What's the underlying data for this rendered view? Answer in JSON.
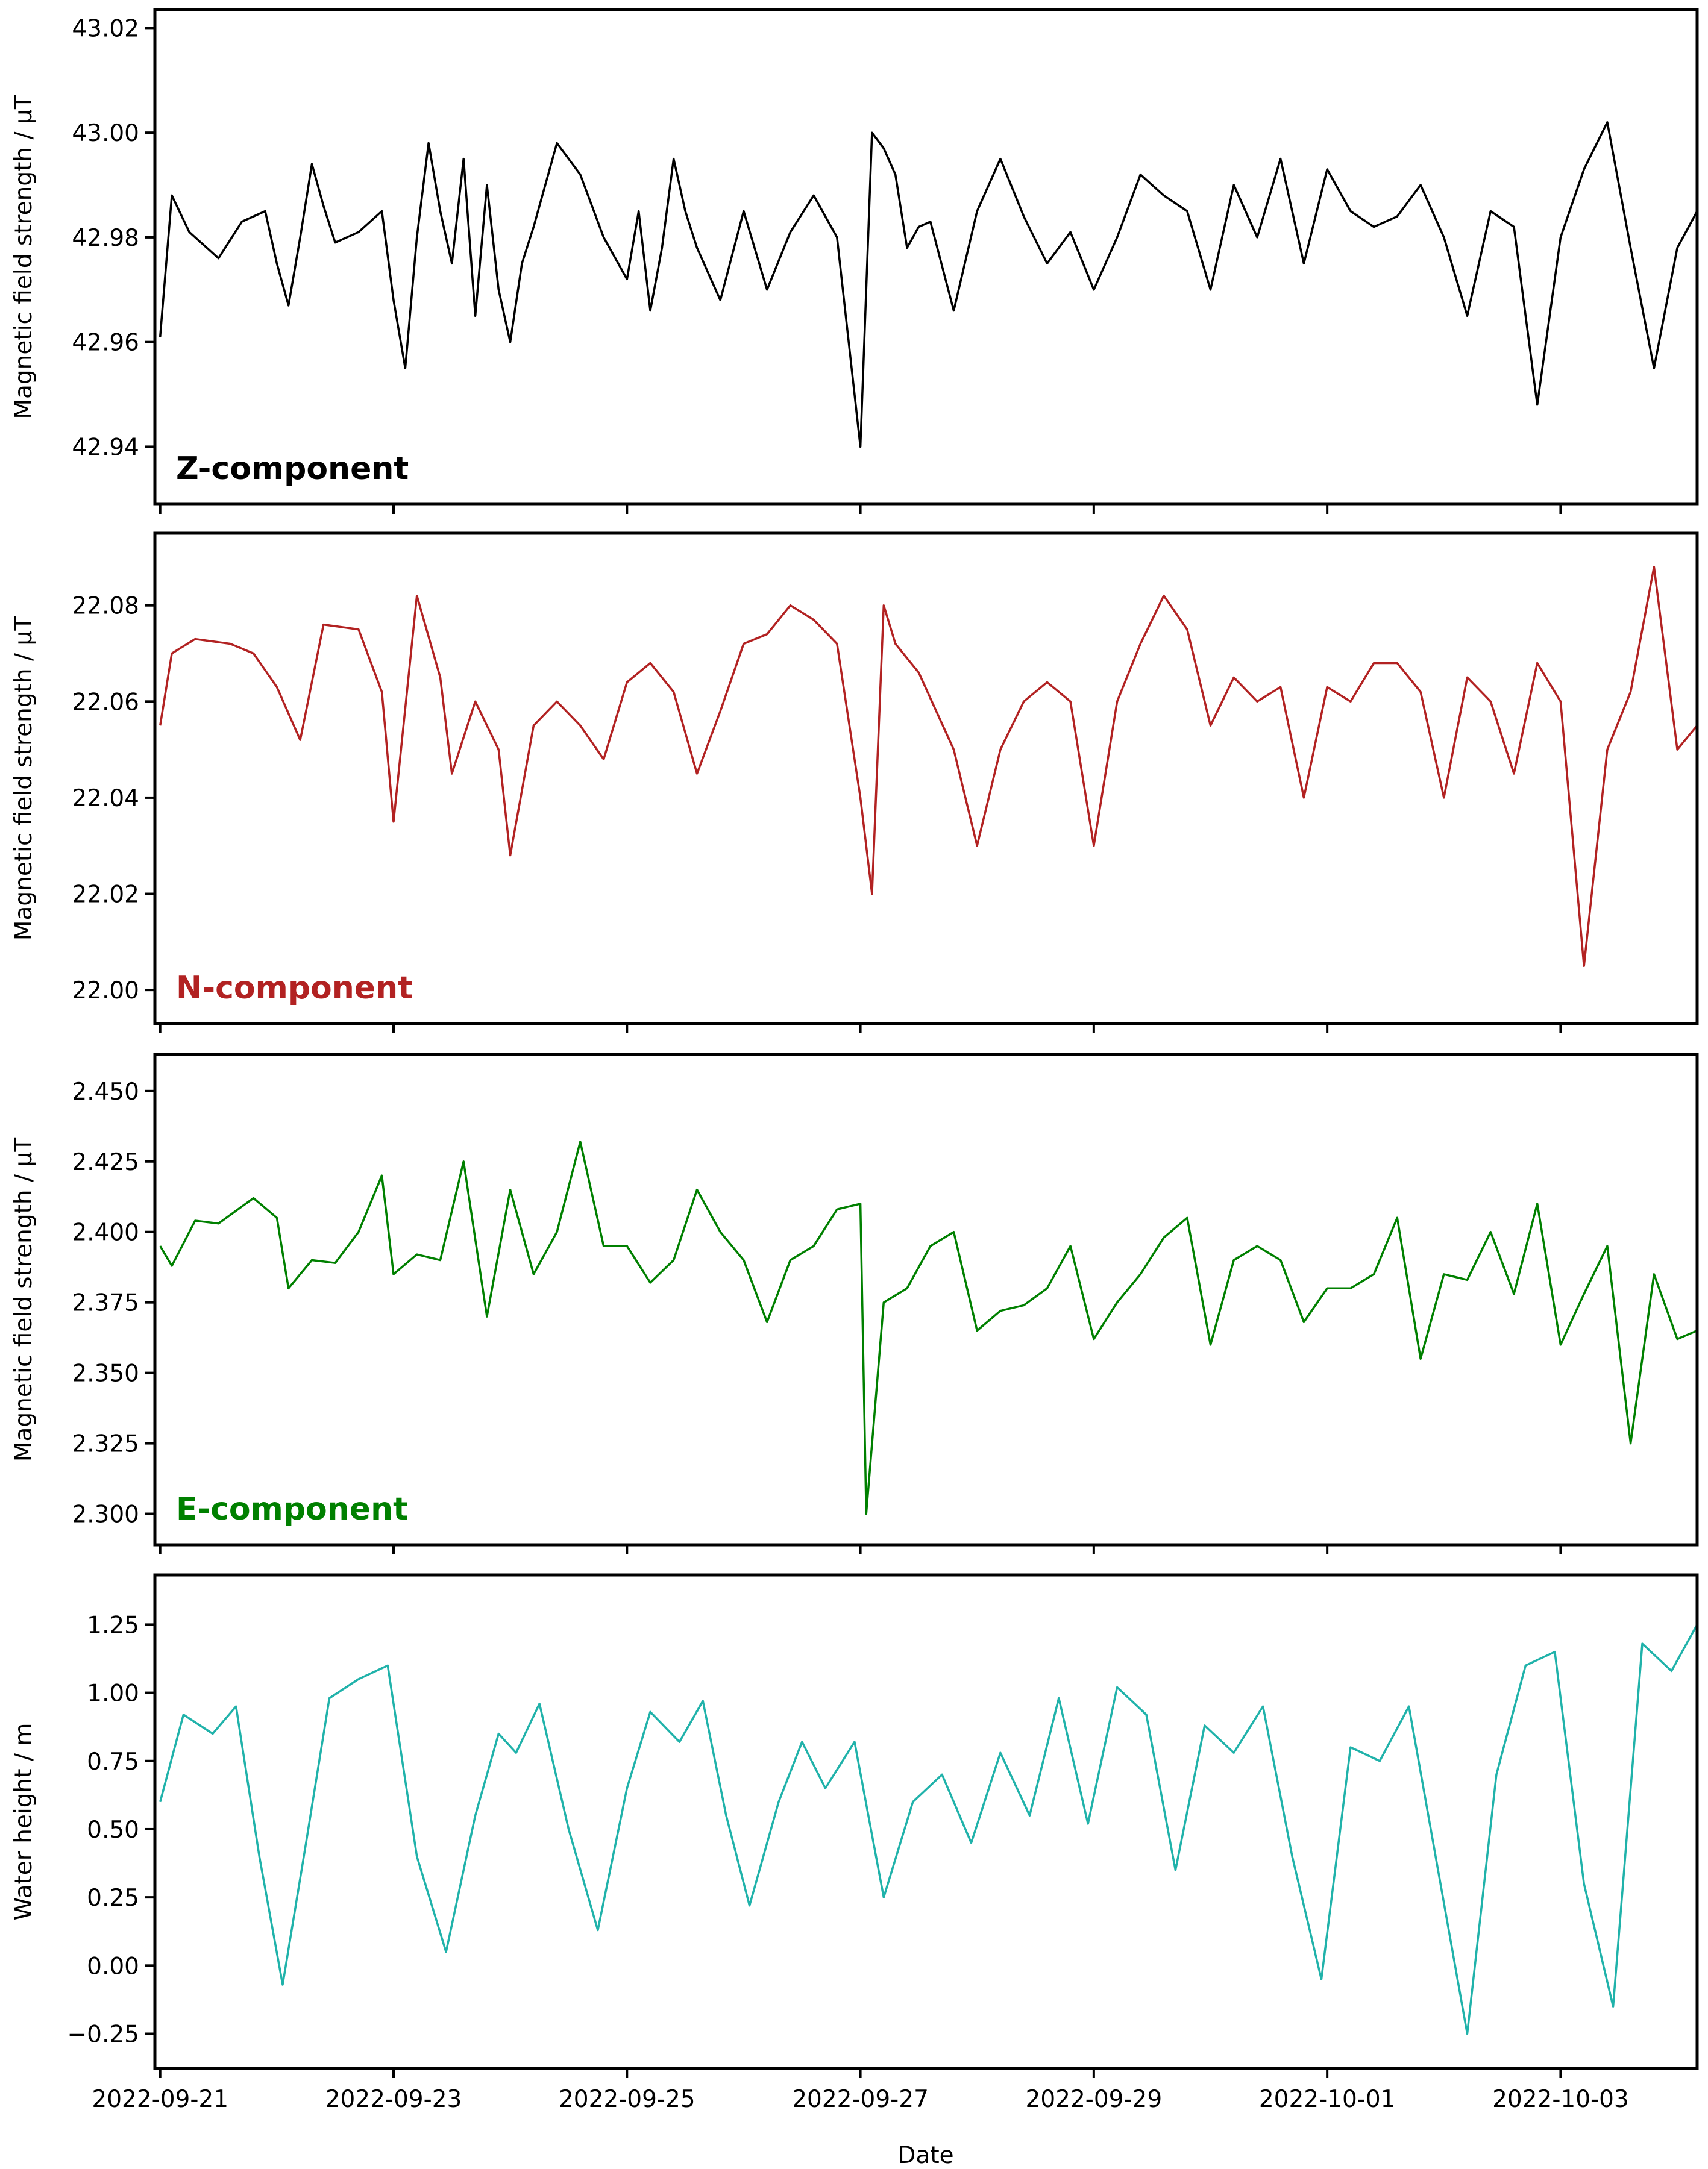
{
  "figure": {
    "xlabel": "Date",
    "x_tick_labels": [
      "2022-09-21",
      "2022-09-23",
      "2022-09-25",
      "2022-09-27",
      "2022-09-29",
      "2022-10-01",
      "2022-10-03"
    ]
  },
  "chart_data": [
    {
      "type": "line",
      "panel": "Z-component",
      "title": "Z-component",
      "label_color": "#000000",
      "line_color": "#000000",
      "xlabel": "",
      "ylabel": "Magnetic field strength / µT",
      "y_ticks": [
        "42.94",
        "42.96",
        "42.98",
        "43.00",
        "43.02"
      ],
      "ylim": [
        42.929,
        43.0235
      ],
      "xlim_days": [
        -0.045,
        13.17
      ],
      "x_days": [
        0,
        0.1,
        0.25,
        0.5,
        0.7,
        0.9,
        1.0,
        1.1,
        1.2,
        1.3,
        1.4,
        1.5,
        1.7,
        1.9,
        2.0,
        2.1,
        2.2,
        2.3,
        2.4,
        2.5,
        2.6,
        2.7,
        2.8,
        2.9,
        3.0,
        3.1,
        3.2,
        3.4,
        3.6,
        3.8,
        4.0,
        4.1,
        4.2,
        4.3,
        4.4,
        4.5,
        4.6,
        4.8,
        5.0,
        5.2,
        5.4,
        5.6,
        5.8,
        6.0,
        6.1,
        6.2,
        6.3,
        6.4,
        6.5,
        6.6,
        6.8,
        7.0,
        7.2,
        7.4,
        7.6,
        7.8,
        8.0,
        8.2,
        8.4,
        8.6,
        8.8,
        9.0,
        9.2,
        9.4,
        9.6,
        9.8,
        10.0,
        10.2,
        10.4,
        10.6,
        10.8,
        11.0,
        11.2,
        11.4,
        11.6,
        11.8,
        12.0,
        12.2,
        12.4,
        12.6,
        12.8,
        13.0,
        13.17
      ],
      "values": [
        42.961,
        42.988,
        42.981,
        42.976,
        42.983,
        42.985,
        42.975,
        42.967,
        42.98,
        42.994,
        42.986,
        42.979,
        42.981,
        42.985,
        42.968,
        42.955,
        42.98,
        42.998,
        42.985,
        42.975,
        42.995,
        42.965,
        42.99,
        42.97,
        42.96,
        42.975,
        42.982,
        42.998,
        42.992,
        42.98,
        42.972,
        42.985,
        42.966,
        42.978,
        42.995,
        42.985,
        42.978,
        42.968,
        42.985,
        42.97,
        42.981,
        42.988,
        42.98,
        42.94,
        43.0,
        42.997,
        42.992,
        42.978,
        42.982,
        42.983,
        42.966,
        42.985,
        42.995,
        42.984,
        42.975,
        42.981,
        42.97,
        42.98,
        42.992,
        42.988,
        42.985,
        42.97,
        42.99,
        42.98,
        42.995,
        42.975,
        42.993,
        42.985,
        42.982,
        42.984,
        42.99,
        42.98,
        42.965,
        42.985,
        42.982,
        42.948,
        42.98,
        42.993,
        43.002,
        42.978,
        42.955,
        42.978,
        42.985
      ]
    },
    {
      "type": "line",
      "panel": "N-component",
      "title": "N-component",
      "label_color": "#b22222",
      "line_color": "#b22222",
      "xlabel": "",
      "ylabel": "Magnetic field strength / µT",
      "y_ticks": [
        "22.00",
        "22.02",
        "22.04",
        "22.06",
        "22.08"
      ],
      "ylim": [
        21.993,
        22.095
      ],
      "xlim_days": [
        -0.045,
        13.17
      ],
      "x_days": [
        0,
        0.1,
        0.3,
        0.6,
        0.8,
        1.0,
        1.2,
        1.4,
        1.7,
        1.9,
        2.0,
        2.2,
        2.4,
        2.5,
        2.7,
        2.9,
        3.0,
        3.2,
        3.4,
        3.6,
        3.8,
        4.0,
        4.2,
        4.4,
        4.6,
        4.8,
        5.0,
        5.2,
        5.4,
        5.6,
        5.8,
        6.0,
        6.1,
        6.2,
        6.3,
        6.5,
        6.8,
        7.0,
        7.2,
        7.4,
        7.6,
        7.8,
        8.0,
        8.2,
        8.4,
        8.6,
        8.8,
        9.0,
        9.2,
        9.4,
        9.6,
        9.8,
        10.0,
        10.2,
        10.4,
        10.6,
        10.8,
        11.0,
        11.2,
        11.4,
        11.6,
        11.8,
        12.0,
        12.2,
        12.4,
        12.6,
        12.8,
        13.0,
        13.17
      ],
      "values": [
        22.055,
        22.07,
        22.073,
        22.072,
        22.07,
        22.063,
        22.052,
        22.076,
        22.075,
        22.062,
        22.035,
        22.082,
        22.065,
        22.045,
        22.06,
        22.05,
        22.028,
        22.055,
        22.06,
        22.055,
        22.048,
        22.064,
        22.068,
        22.062,
        22.045,
        22.058,
        22.072,
        22.074,
        22.08,
        22.077,
        22.072,
        22.04,
        22.02,
        22.08,
        22.072,
        22.066,
        22.05,
        22.03,
        22.05,
        22.06,
        22.064,
        22.06,
        22.03,
        22.06,
        22.072,
        22.082,
        22.075,
        22.055,
        22.065,
        22.06,
        22.063,
        22.04,
        22.063,
        22.06,
        22.068,
        22.068,
        22.062,
        22.04,
        22.065,
        22.06,
        22.045,
        22.068,
        22.06,
        22.005,
        22.05,
        22.062,
        22.088,
        22.05,
        22.055
      ]
    },
    {
      "type": "line",
      "panel": "E-component",
      "title": "E-component",
      "label_color": "#008000",
      "line_color": "#008000",
      "xlabel": "",
      "ylabel": "Magnetic field strength / µT",
      "y_ticks": [
        "2.300",
        "2.325",
        "2.350",
        "2.375",
        "2.400",
        "2.425",
        "2.450"
      ],
      "ylim": [
        2.289,
        2.463
      ],
      "xlim_days": [
        -0.045,
        13.17
      ],
      "x_days": [
        0,
        0.1,
        0.3,
        0.5,
        0.8,
        1.0,
        1.1,
        1.3,
        1.5,
        1.7,
        1.9,
        2.0,
        2.2,
        2.4,
        2.6,
        2.8,
        3.0,
        3.2,
        3.4,
        3.6,
        3.8,
        4.0,
        4.2,
        4.4,
        4.6,
        4.8,
        5.0,
        5.2,
        5.4,
        5.6,
        5.8,
        6.0,
        6.05,
        6.2,
        6.4,
        6.6,
        6.8,
        7.0,
        7.2,
        7.4,
        7.6,
        7.8,
        8.0,
        8.2,
        8.4,
        8.6,
        8.8,
        9.0,
        9.2,
        9.4,
        9.6,
        9.8,
        10.0,
        10.2,
        10.4,
        10.6,
        10.8,
        11.0,
        11.2,
        11.4,
        11.6,
        11.8,
        12.0,
        12.2,
        12.4,
        12.6,
        12.8,
        13.0,
        13.17
      ],
      "values": [
        2.395,
        2.388,
        2.404,
        2.403,
        2.412,
        2.405,
        2.38,
        2.39,
        2.389,
        2.4,
        2.42,
        2.385,
        2.392,
        2.39,
        2.425,
        2.37,
        2.415,
        2.385,
        2.4,
        2.432,
        2.395,
        2.395,
        2.382,
        2.39,
        2.415,
        2.4,
        2.39,
        2.368,
        2.39,
        2.395,
        2.408,
        2.41,
        2.3,
        2.375,
        2.38,
        2.395,
        2.4,
        2.365,
        2.372,
        2.374,
        2.38,
        2.395,
        2.362,
        2.375,
        2.385,
        2.398,
        2.405,
        2.36,
        2.39,
        2.395,
        2.39,
        2.368,
        2.38,
        2.38,
        2.385,
        2.405,
        2.355,
        2.385,
        2.383,
        2.4,
        2.378,
        2.41,
        2.36,
        2.378,
        2.395,
        2.325,
        2.385,
        2.362,
        2.365
      ]
    },
    {
      "type": "line",
      "panel": "Water height",
      "title": "",
      "line_color": "#20b2aa",
      "xlabel": "Date",
      "ylabel": "Water height / m",
      "y_ticks": [
        "−0.25",
        "0.00",
        "0.25",
        "0.50",
        "0.75",
        "1.00",
        "1.25"
      ],
      "ylim": [
        -0.377,
        1.432
      ],
      "xlim_days": [
        -0.045,
        13.17
      ],
      "x_days": [
        0,
        0.2,
        0.45,
        0.65,
        0.85,
        1.05,
        1.25,
        1.45,
        1.7,
        1.95,
        2.2,
        2.45,
        2.7,
        2.9,
        3.05,
        3.25,
        3.5,
        3.75,
        4.0,
        4.2,
        4.45,
        4.65,
        4.85,
        5.05,
        5.3,
        5.5,
        5.7,
        5.95,
        6.2,
        6.45,
        6.7,
        6.95,
        7.2,
        7.45,
        7.7,
        7.95,
        8.2,
        8.45,
        8.7,
        8.95,
        9.2,
        9.45,
        9.7,
        9.95,
        10.2,
        10.45,
        10.7,
        10.95,
        11.2,
        11.45,
        11.7,
        11.95,
        12.2,
        12.45,
        12.7,
        12.95,
        13.17
      ],
      "values": [
        0.6,
        0.92,
        0.85,
        0.95,
        0.4,
        -0.07,
        0.45,
        0.98,
        1.05,
        1.1,
        0.4,
        0.05,
        0.55,
        0.85,
        0.78,
        0.96,
        0.5,
        0.13,
        0.65,
        0.93,
        0.82,
        0.97,
        0.55,
        0.22,
        0.6,
        0.82,
        0.65,
        0.82,
        0.25,
        0.6,
        0.7,
        0.45,
        0.78,
        0.55,
        0.98,
        0.52,
        1.02,
        0.92,
        0.35,
        0.88,
        0.78,
        0.95,
        0.4,
        -0.05,
        0.8,
        0.75,
        0.95,
        0.35,
        -0.25,
        0.7,
        1.1,
        1.15,
        0.3,
        -0.15,
        1.18,
        1.08,
        1.25
      ]
    }
  ]
}
